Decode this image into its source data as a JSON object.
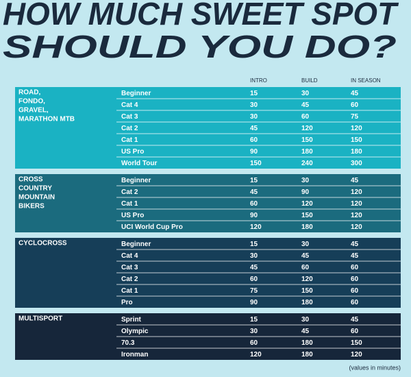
{
  "title": [
    "HOW MUCH SWEET SPOT",
    "SHOULD YOU DO?"
  ],
  "columns": [
    "INTRO",
    "BUILD",
    "IN SEASON"
  ],
  "sections": [
    {
      "label": [
        "ROAD,",
        "FONDO,",
        "GRAVEL,",
        "MARATHON MTB"
      ],
      "rows": [
        [
          "Beginner",
          "15",
          "30",
          "45"
        ],
        [
          "Cat 4",
          "30",
          "45",
          "60"
        ],
        [
          "Cat 3",
          "30",
          "60",
          "75"
        ],
        [
          "Cat 2",
          "45",
          "120",
          "120"
        ],
        [
          "Cat 1",
          "60",
          "150",
          "150"
        ],
        [
          "US Pro",
          "90",
          "180",
          "180"
        ],
        [
          "World Tour",
          "150",
          "240",
          "300"
        ]
      ]
    },
    {
      "label": [
        "CROSS",
        "COUNTRY",
        "MOUNTAIN",
        "BIKERS"
      ],
      "rows": [
        [
          "Beginner",
          "15",
          "30",
          "45"
        ],
        [
          "Cat 2",
          "45",
          "90",
          "120"
        ],
        [
          "Cat 1",
          "60",
          "120",
          "120"
        ],
        [
          "US Pro",
          "90",
          "150",
          "120"
        ],
        [
          "UCI World Cup Pro",
          "120",
          "180",
          "120"
        ]
      ]
    },
    {
      "label": [
        "CYCLOCROSS"
      ],
      "rows": [
        [
          "Beginner",
          "15",
          "30",
          "45"
        ],
        [
          "Cat 4",
          "30",
          "45",
          "45"
        ],
        [
          "Cat 3",
          "45",
          "60",
          "60"
        ],
        [
          "Cat 2",
          "60",
          "120",
          "60"
        ],
        [
          "Cat 1",
          "75",
          "150",
          "60"
        ],
        [
          "Pro",
          "90",
          "180",
          "60"
        ]
      ]
    },
    {
      "label": [
        "MULTISPORT"
      ],
      "rows": [
        [
          "Sprint",
          "15",
          "30",
          "45"
        ],
        [
          "Olympic",
          "30",
          "45",
          "60"
        ],
        [
          "70.3",
          "60",
          "180",
          "150"
        ],
        [
          "Ironman",
          "120",
          "180",
          "120"
        ]
      ]
    }
  ],
  "footnote": "(values in minutes)"
}
